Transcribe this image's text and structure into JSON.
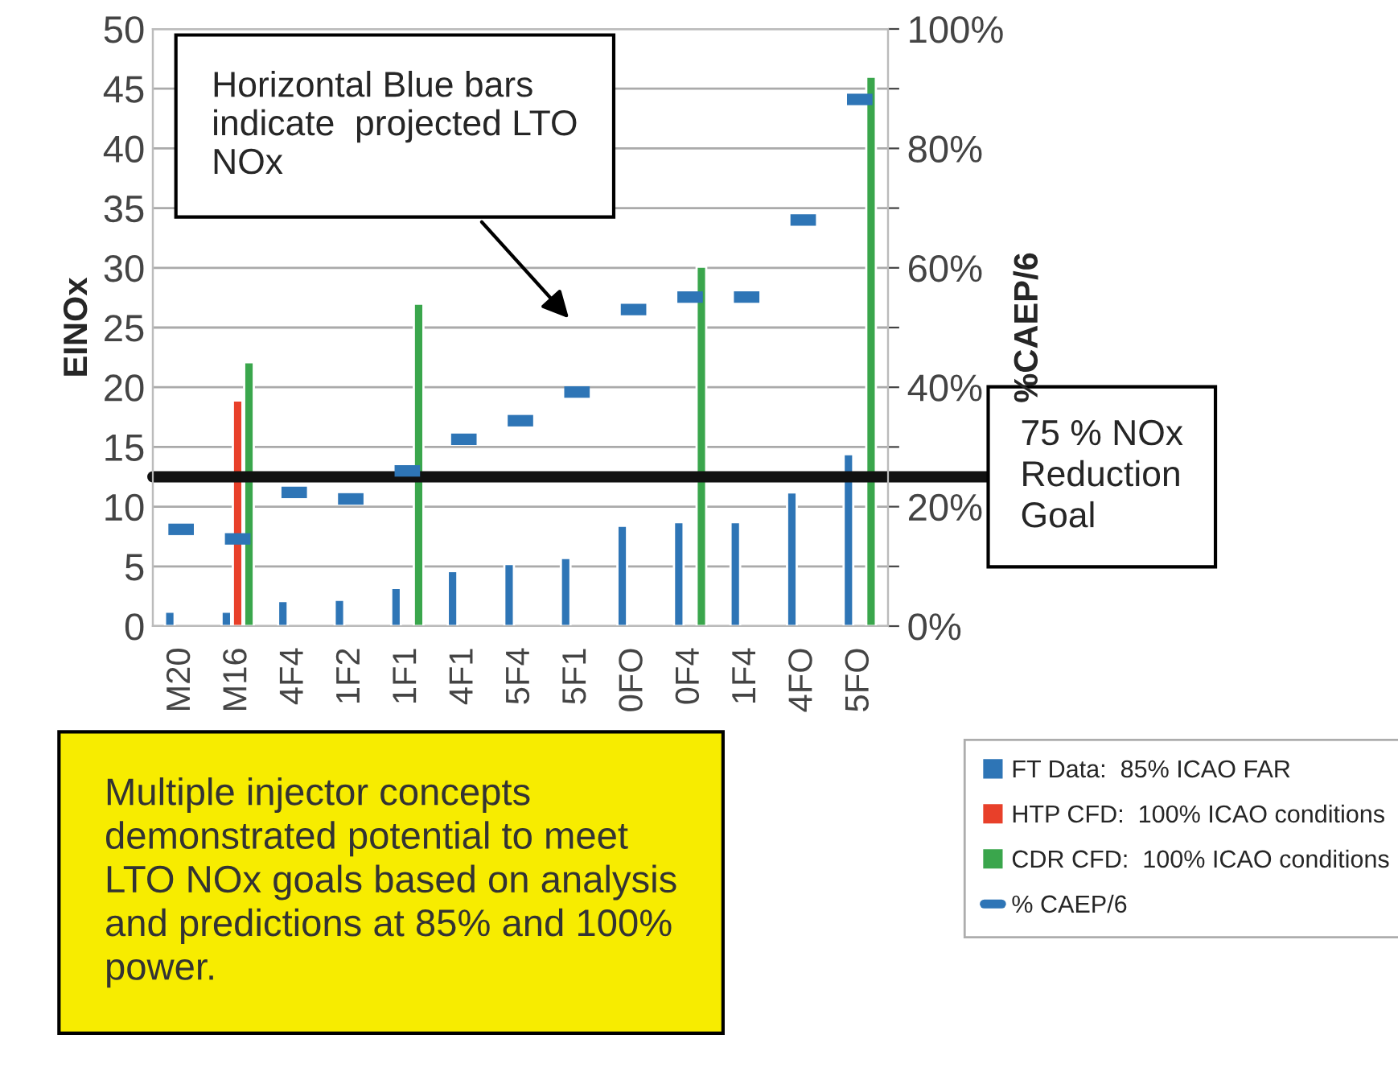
{
  "chart_data": {
    "type": "bar",
    "categories": [
      "M20",
      "M16",
      "4F4",
      "1F2",
      "1F1",
      "4F1",
      "5F4",
      "5F1",
      "0FO",
      "0F4",
      "1F4",
      "4FO",
      "5FO"
    ],
    "ylabel": "EINOx",
    "y2label": "%CAEP/6",
    "series": [
      {
        "name": "FT Data:  85% ICAO FAR",
        "color": "#2e75b6",
        "values": [
          1.2,
          1.2,
          2.1,
          2.2,
          3.2,
          4.6,
          5.2,
          5.7,
          8.4,
          8.7,
          8.7,
          11.2,
          14.4
        ]
      },
      {
        "name": "HTP CFD:  100% ICAO conditions",
        "color": "#e8402a",
        "values": [
          null,
          18.9,
          null,
          null,
          null,
          null,
          null,
          null,
          null,
          null,
          null,
          null,
          null
        ]
      },
      {
        "name": "CDR CFD:  100% ICAO conditions",
        "color": "#3aa64c",
        "values": [
          null,
          22.1,
          null,
          null,
          27.0,
          null,
          null,
          null,
          null,
          30.1,
          null,
          null,
          46.0
        ]
      },
      {
        "name": "% CAEP/6",
        "type": "scatter",
        "axis": "y2",
        "color": "#2e75b6",
        "values": [
          16.2,
          14.6,
          22.4,
          21.3,
          26,
          31.3,
          34.4,
          39.2,
          53,
          55.1,
          55.1,
          68,
          88.2
        ]
      }
    ],
    "ylim": [
      0,
      50
    ],
    "yticks": [
      0,
      5,
      10,
      15,
      20,
      25,
      30,
      35,
      40,
      45,
      50
    ],
    "y2lim": [
      0,
      100
    ],
    "y2ticks": [
      {
        "value": 0,
        "label": "0%"
      },
      {
        "value": 10,
        "label": null
      },
      {
        "value": 20,
        "label": "20%"
      },
      {
        "value": 30,
        "label": null
      },
      {
        "value": 40,
        "label": "40%"
      },
      {
        "value": 50,
        "label": null
      },
      {
        "value": 60,
        "label": "60%"
      },
      {
        "value": 70,
        "label": null
      },
      {
        "value": 80,
        "label": "80%"
      },
      {
        "value": 90,
        "label": null
      },
      {
        "value": 100,
        "label": "100%"
      }
    ],
    "ref_lines": [
      {
        "axis": "y",
        "value": 12.5,
        "label": "75 % NOx\nReduction\nGoal",
        "color": "#111111"
      }
    ],
    "annotations": [
      "Horizontal Blue bars\nindicate  projected LTO\nNOx",
      "Multiple injector concepts\ndemonstrated potential to meet\nLTO NOx goals based on analysis\nand predictions at 85% and 100%\npower."
    ],
    "grid": "y",
    "legend": "bottom right"
  }
}
